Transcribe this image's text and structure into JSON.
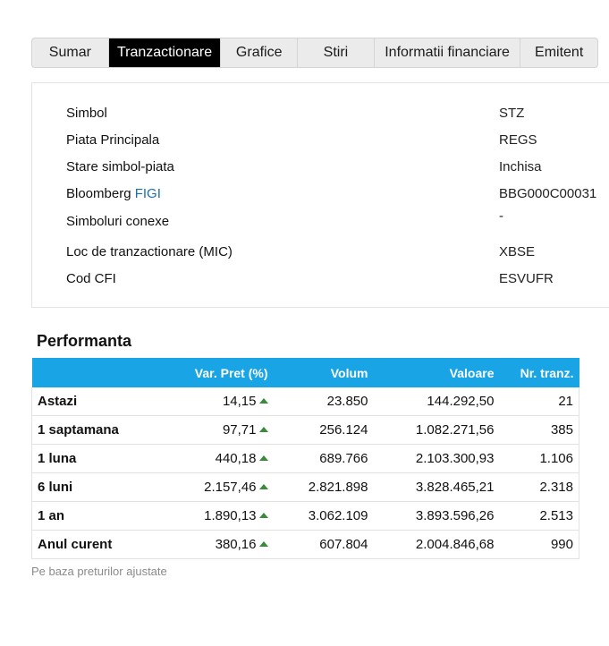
{
  "tabs": [
    "Sumar",
    "Tranzactionare",
    "Grafice",
    "Stiri",
    "Informatii financiare",
    "Emitent"
  ],
  "active_tab": "Tranzactionare",
  "info": {
    "symbol_label": "Simbol",
    "symbol_value": "STZ",
    "market_label": "Piata Principala",
    "market_value": "REGS",
    "state_label": "Stare simbol-piata",
    "state_value": "Inchisa",
    "figi_label_prefix": "Bloomberg",
    "figi_link": "FIGI",
    "figi_value": "BBG000C00031",
    "related_label": "Simboluri conexe",
    "related_value": "-",
    "mic_label": "Loc de tranzactionare (MIC)",
    "mic_value": "XBSE",
    "cfi_label": "Cod CFI",
    "cfi_value": "ESVUFR"
  },
  "performance": {
    "title": "Performanta",
    "headers": [
      "",
      "Var. Pret (%)",
      "Volum",
      "Valoare",
      "Nr. tranz."
    ],
    "rows": [
      {
        "period": "Astazi",
        "var": "14,15",
        "volume": "23.850",
        "value": "144.292,50",
        "trades": "21"
      },
      {
        "period": "1 saptamana",
        "var": "97,71",
        "volume": "256.124",
        "value": "1.082.271,56",
        "trades": "385"
      },
      {
        "period": "1 luna",
        "var": "440,18",
        "volume": "689.766",
        "value": "2.103.300,93",
        "trades": "1.106"
      },
      {
        "period": "6 luni",
        "var": "2.157,46",
        "volume": "2.821.898",
        "value": "3.828.465,21",
        "trades": "2.318"
      },
      {
        "period": "1 an",
        "var": "1.890,13",
        "volume": "3.062.109",
        "value": "3.893.596,26",
        "trades": "2.513"
      },
      {
        "period": "Anul curent",
        "var": "380,16",
        "volume": "607.804",
        "value": "2.004.846,68",
        "trades": "990"
      }
    ],
    "footnote": "Pe baza preturilor ajustate"
  },
  "colors": {
    "header_bg": "#19a4e6",
    "positive": "#3a8a3a",
    "link": "#1a6fa8",
    "active_tab_bg": "#000000"
  }
}
